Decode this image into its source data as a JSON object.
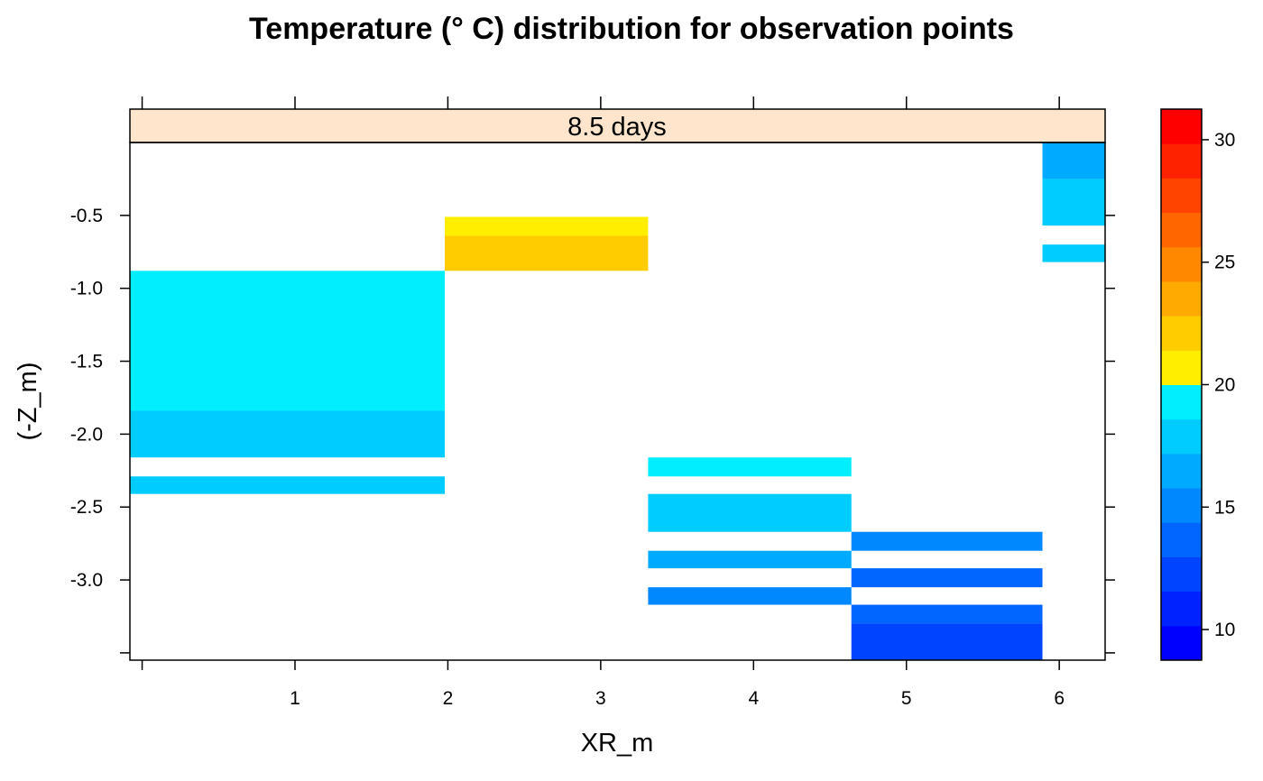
{
  "chart_data": {
    "type": "heatmap",
    "title": "Temperature (° C) distribution for observation points",
    "panel_label": "8.5 days",
    "xlabel": "XR_m",
    "ylabel": "(-Z_m)",
    "xlim": [
      -0.08,
      6.3
    ],
    "ylim": [
      -3.55,
      -0.0
    ],
    "x_ticks": [
      {
        "value": 1,
        "label": "1"
      },
      {
        "value": 2,
        "label": "2"
      },
      {
        "value": 3,
        "label": "3"
      },
      {
        "value": 4,
        "label": "4"
      },
      {
        "value": 5,
        "label": "5"
      },
      {
        "value": 6,
        "label": "6"
      }
    ],
    "x_ticks_top": [
      0,
      1,
      2,
      3,
      4,
      5,
      6
    ],
    "y_ticks": [
      {
        "value": -0.5,
        "label": "-0.5"
      },
      {
        "value": -1.0,
        "label": "-1.0"
      },
      {
        "value": -1.5,
        "label": "-1.5"
      },
      {
        "value": -2.0,
        "label": "-2.0"
      },
      {
        "value": -2.5,
        "label": "-2.5"
      },
      {
        "value": -3.0,
        "label": "-3.0"
      }
    ],
    "y_ticks_extra": [
      -3.5
    ],
    "colorkey": {
      "range": [
        8.75,
        31.25
      ],
      "ticks": [
        {
          "value": 10,
          "label": "10"
        },
        {
          "value": 15,
          "label": "15"
        },
        {
          "value": 20,
          "label": "20"
        },
        {
          "value": 25,
          "label": "25"
        },
        {
          "value": 30,
          "label": "30"
        }
      ],
      "colors": [
        "#0000FF",
        "#0022FF",
        "#0044FF",
        "#0066FF",
        "#0088FF",
        "#00AAFF",
        "#00CCFF",
        "#00EEFF",
        "#FFEE00",
        "#FFCC00",
        "#FFAA00",
        "#FF8800",
        "#FF6600",
        "#FF4400",
        "#FF2200",
        "#FF0000"
      ]
    },
    "cells": [
      {
        "x0": -0.08,
        "x1": 1.98,
        "y_top": -0.88,
        "y_bottom": -1.84,
        "value": 19.4
      },
      {
        "x0": -0.08,
        "x1": 1.98,
        "y_top": -1.84,
        "y_bottom": -2.16,
        "value": 18.0
      },
      {
        "x0": -0.08,
        "x1": 1.98,
        "y_top": -2.29,
        "y_bottom": -2.41,
        "value": 18.0
      },
      {
        "x0": 1.98,
        "x1": 3.31,
        "y_top": -0.51,
        "y_bottom": -0.64,
        "value": 20.8
      },
      {
        "x0": 1.98,
        "x1": 3.31,
        "y_top": -0.64,
        "y_bottom": -0.88,
        "value": 22.2
      },
      {
        "x0": 3.31,
        "x1": 4.64,
        "y_top": -2.16,
        "y_bottom": -2.29,
        "value": 19.4
      },
      {
        "x0": 3.31,
        "x1": 4.64,
        "y_top": -2.41,
        "y_bottom": -2.67,
        "value": 18.0
      },
      {
        "x0": 3.31,
        "x1": 4.64,
        "y_top": -2.8,
        "y_bottom": -2.92,
        "value": 16.6
      },
      {
        "x0": 3.31,
        "x1": 4.64,
        "y_top": -3.05,
        "y_bottom": -3.17,
        "value": 15.3
      },
      {
        "x0": 4.64,
        "x1": 5.89,
        "y_top": -2.67,
        "y_bottom": -2.8,
        "value": 15.3
      },
      {
        "x0": 4.64,
        "x1": 5.89,
        "y_top": -2.92,
        "y_bottom": -3.05,
        "value": 13.9
      },
      {
        "x0": 4.64,
        "x1": 5.89,
        "y_top": -3.17,
        "y_bottom": -3.3,
        "value": 13.9
      },
      {
        "x0": 4.64,
        "x1": 5.89,
        "y_top": -3.3,
        "y_bottom": -3.55,
        "value": 12.5
      },
      {
        "x0": 5.89,
        "x1": 6.3,
        "y_top": -0.0,
        "y_bottom": -0.25,
        "value": 16.6
      },
      {
        "x0": 5.89,
        "x1": 6.3,
        "y_top": -0.25,
        "y_bottom": -0.57,
        "value": 18.0
      },
      {
        "x0": 5.89,
        "x1": 6.3,
        "y_top": -0.7,
        "y_bottom": -0.82,
        "value": 18.0
      }
    ]
  }
}
